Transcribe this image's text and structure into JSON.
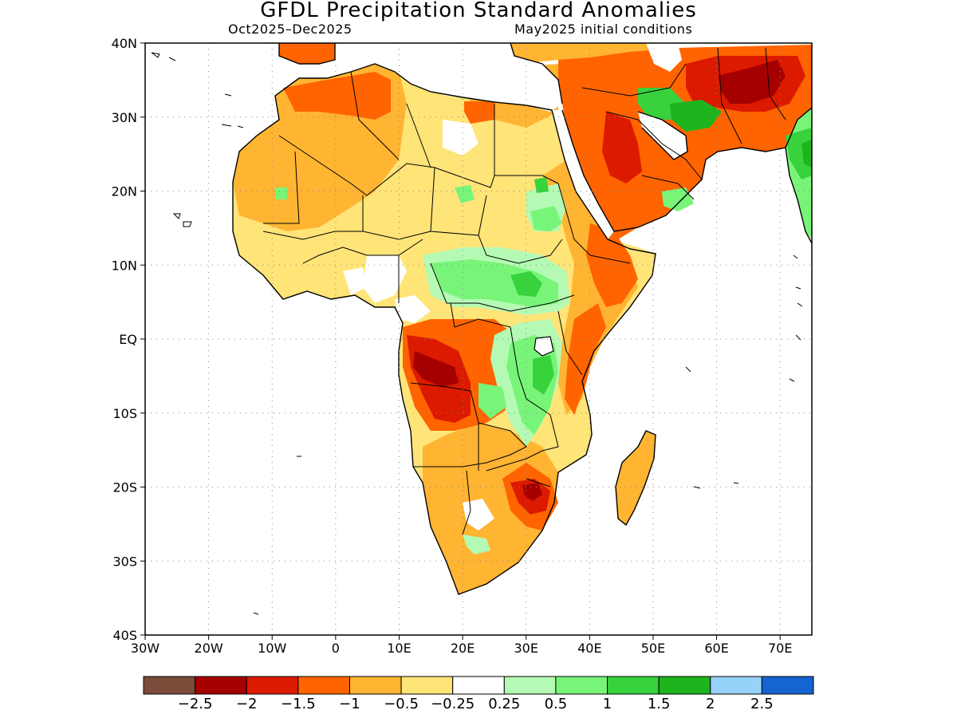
{
  "title": "GFDL Precipitation Standard Anomalies",
  "subtitle_left": "Oct2025–Dec2025",
  "subtitle_right": "May2025 initial conditions",
  "map": {
    "lon_range": [
      -30,
      75
    ],
    "lat_range": [
      -40,
      40
    ],
    "x_ticks": [
      {
        "value": -30,
        "label": "30W"
      },
      {
        "value": -20,
        "label": "20W"
      },
      {
        "value": -10,
        "label": "10W"
      },
      {
        "value": 0,
        "label": "0"
      },
      {
        "value": 10,
        "label": "10E"
      },
      {
        "value": 20,
        "label": "20E"
      },
      {
        "value": 30,
        "label": "30E"
      },
      {
        "value": 40,
        "label": "40E"
      },
      {
        "value": 50,
        "label": "50E"
      },
      {
        "value": 60,
        "label": "60E"
      },
      {
        "value": 70,
        "label": "70E"
      }
    ],
    "y_ticks": [
      {
        "value": 40,
        "label": "40N"
      },
      {
        "value": 30,
        "label": "30N"
      },
      {
        "value": 20,
        "label": "20N"
      },
      {
        "value": 10,
        "label": "10N"
      },
      {
        "value": 0,
        "label": "EQ"
      },
      {
        "value": -10,
        "label": "10S"
      },
      {
        "value": -20,
        "label": "20S"
      },
      {
        "value": -30,
        "label": "30S"
      },
      {
        "value": -40,
        "label": "40S"
      }
    ],
    "grid": "dotted"
  },
  "colorbar": {
    "colors": [
      "#7b4b3a",
      "#a50000",
      "#dc1a00",
      "#ff6400",
      "#ffb432",
      "#ffe478",
      "#ffffff",
      "#b4fab4",
      "#78f578",
      "#37d23c",
      "#1eb41e",
      "#96d2fa",
      "#1464d2"
    ],
    "labels": [
      "−2.5",
      "−2",
      "−1.5",
      "−1",
      "−0.5",
      "−0.25",
      "0.25",
      "0.5",
      "1",
      "1.5",
      "2",
      "2.5"
    ]
  }
}
